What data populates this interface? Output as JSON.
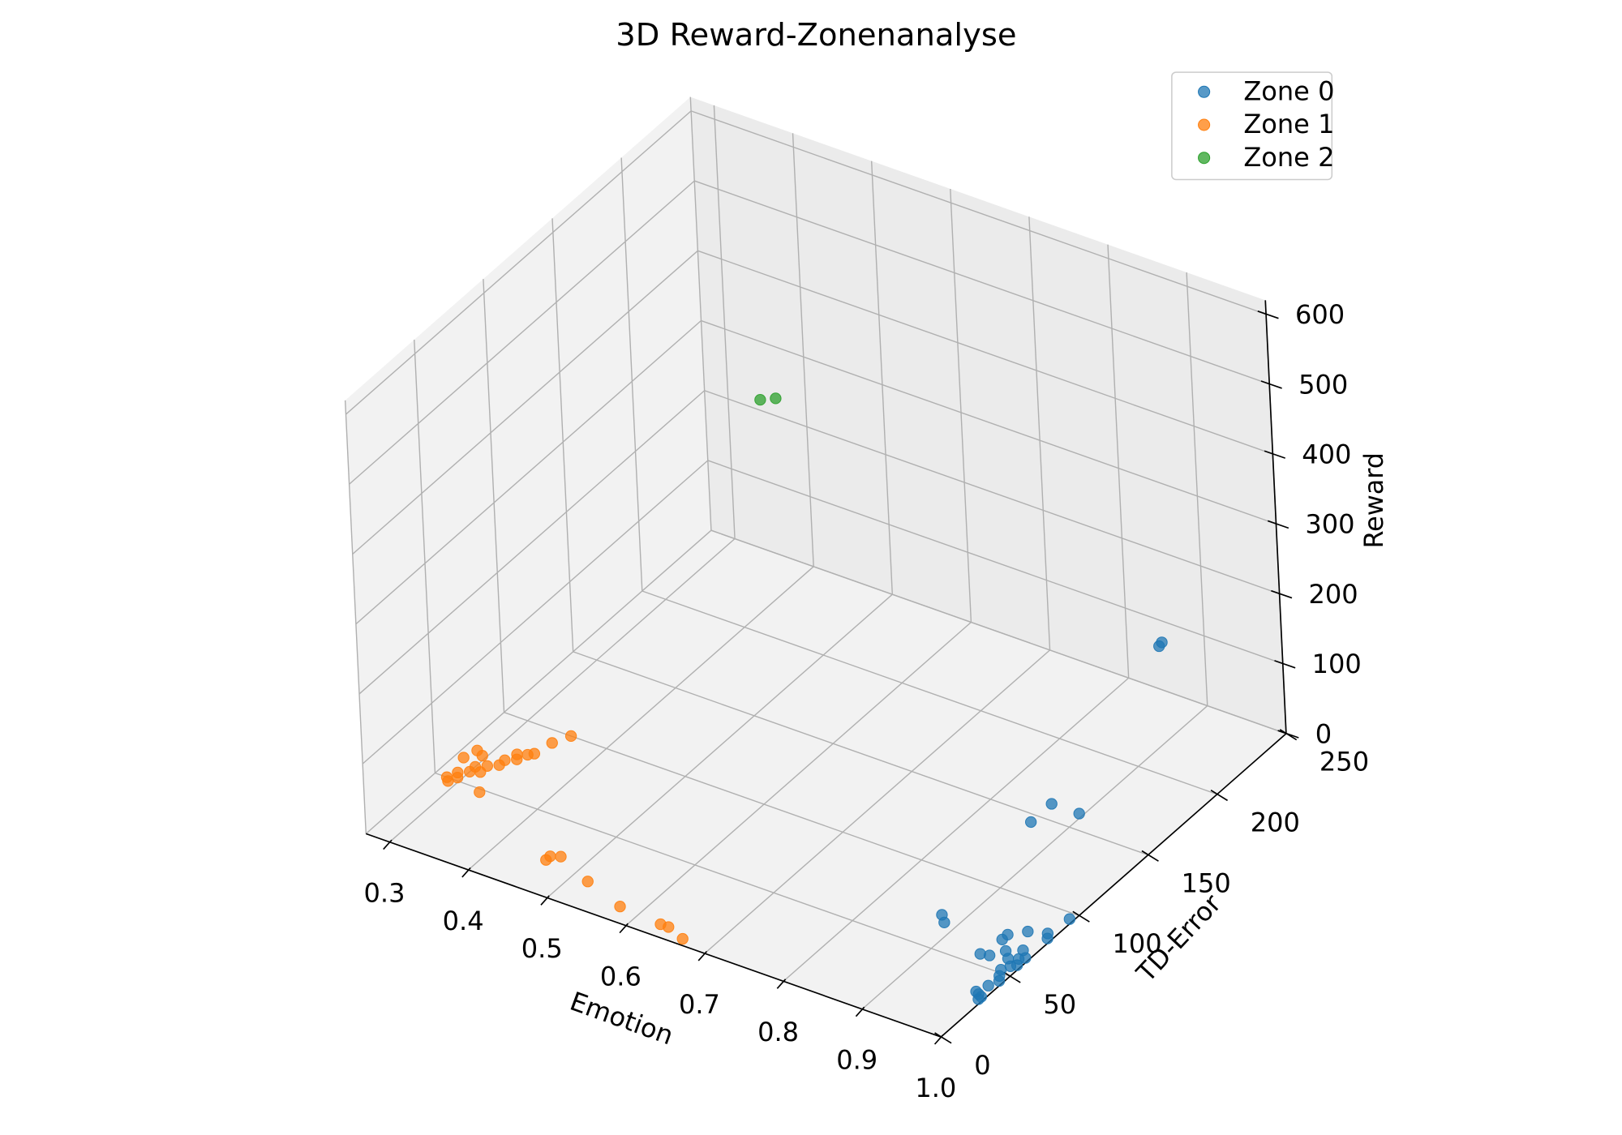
{
  "chart_data": {
    "type": "scatter",
    "projection": "3d",
    "title": "3D Reward-Zonenanalyse",
    "xlabel": "Emotion",
    "ylabel": "TD-Error",
    "zlabel": "Reward",
    "xlim": [
      0.27,
      1.0
    ],
    "ylim": [
      0,
      250
    ],
    "zlim": [
      0,
      620
    ],
    "xticks": [
      "0.3",
      "0.4",
      "0.5",
      "0.6",
      "0.7",
      "0.8",
      "0.9",
      "1.0"
    ],
    "yticks": [
      "0",
      "50",
      "100",
      "150",
      "200",
      "250"
    ],
    "zticks": [
      "0",
      "100",
      "200",
      "300",
      "400",
      "500",
      "600"
    ],
    "grid": true,
    "legend": "top-right",
    "series": [
      {
        "name": "Zone 0",
        "color": "#1f77b4",
        "points": [
          [
            0.995,
            32,
            0
          ],
          [
            0.995,
            30,
            0
          ],
          [
            0.99,
            33,
            0
          ],
          [
            0.985,
            34,
            0
          ],
          [
            0.99,
            40,
            0
          ],
          [
            0.995,
            45,
            0
          ],
          [
            0.99,
            48,
            0
          ],
          [
            0.985,
            52,
            0
          ],
          [
            0.99,
            56,
            0
          ],
          [
            0.995,
            58,
            0
          ],
          [
            0.98,
            60,
            0
          ],
          [
            0.99,
            62,
            0
          ],
          [
            0.995,
            64,
            0
          ],
          [
            0.985,
            68,
            0
          ],
          [
            0.97,
            64,
            0
          ],
          [
            0.96,
            58,
            0
          ],
          [
            0.95,
            57,
            0
          ],
          [
            0.955,
            70,
            0
          ],
          [
            0.955,
            74,
            0
          ],
          [
            0.97,
            80,
            0
          ],
          [
            0.995,
            80,
            0
          ],
          [
            0.99,
            83,
            0
          ],
          [
            0.885,
            68,
            0
          ],
          [
            0.875,
            72,
            0
          ],
          [
            0.995,
            96,
            0
          ],
          [
            0.86,
            145,
            0
          ],
          [
            0.86,
            160,
            0
          ],
          [
            0.895,
            160,
            0
          ],
          [
            0.99,
            170,
            260
          ],
          [
            0.99,
            172,
            262
          ]
        ]
      },
      {
        "name": "Zone 1",
        "color": "#ff7f0e",
        "points": [
          [
            0.285,
            50,
            0
          ],
          [
            0.29,
            48,
            0
          ],
          [
            0.29,
            55,
            0
          ],
          [
            0.295,
            52,
            0
          ],
          [
            0.3,
            58,
            0
          ],
          [
            0.3,
            62,
            0
          ],
          [
            0.31,
            65,
            0
          ],
          [
            0.31,
            60,
            0
          ],
          [
            0.32,
            68,
            0
          ],
          [
            0.32,
            72,
            0
          ],
          [
            0.33,
            75,
            0
          ],
          [
            0.325,
            78,
            0
          ],
          [
            0.335,
            80,
            0
          ],
          [
            0.34,
            82,
            0
          ],
          [
            0.28,
            65,
            0
          ],
          [
            0.33,
            48,
            0
          ],
          [
            0.345,
            92,
            0
          ],
          [
            0.355,
            100,
            0
          ],
          [
            0.285,
            72,
            0
          ],
          [
            0.295,
            70,
            0
          ],
          [
            0.46,
            22,
            0
          ],
          [
            0.46,
            25,
            0
          ],
          [
            0.47,
            27,
            0
          ],
          [
            0.52,
            18,
            0
          ],
          [
            0.575,
            10,
            0
          ],
          [
            0.63,
            8,
            0
          ],
          [
            0.64,
            8,
            0
          ],
          [
            0.665,
            4,
            0
          ]
        ]
      },
      {
        "name": "Zone 2",
        "color": "#2ca02c",
        "points": [
          [
            0.36,
            240,
            240
          ],
          [
            0.38,
            240,
            250
          ]
        ]
      }
    ]
  }
}
